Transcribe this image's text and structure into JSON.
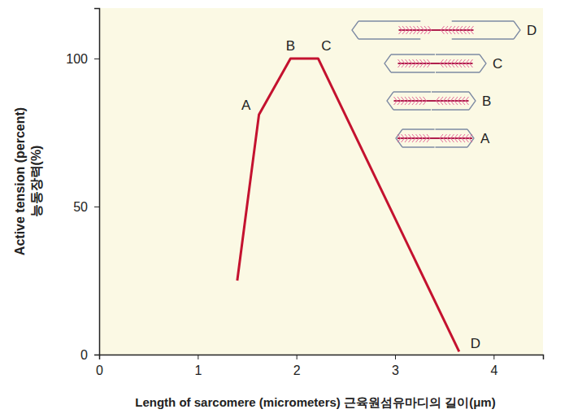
{
  "chart_data": {
    "type": "line",
    "x_label": "Length of sarcomere (micrometers) 근육원섬유마디의 길이(μm)",
    "y_label": [
      "Active tension (percent)",
      "능동장력(%)"
    ],
    "x": [
      1.4,
      1.62,
      1.94,
      2.22,
      3.65
    ],
    "values": [
      25,
      81,
      100,
      100,
      1
    ],
    "point_labels": [
      null,
      "A",
      "B",
      "C",
      "D"
    ],
    "diagram_labels": [
      "D",
      "C",
      "B",
      "A"
    ],
    "color": "#c4122f",
    "xlim": [
      0,
      4.5
    ],
    "xticks": [
      0,
      1,
      2,
      3,
      4
    ],
    "ylim": [
      0,
      117
    ],
    "yticks": [
      0,
      50,
      100
    ],
    "grid": false
  }
}
